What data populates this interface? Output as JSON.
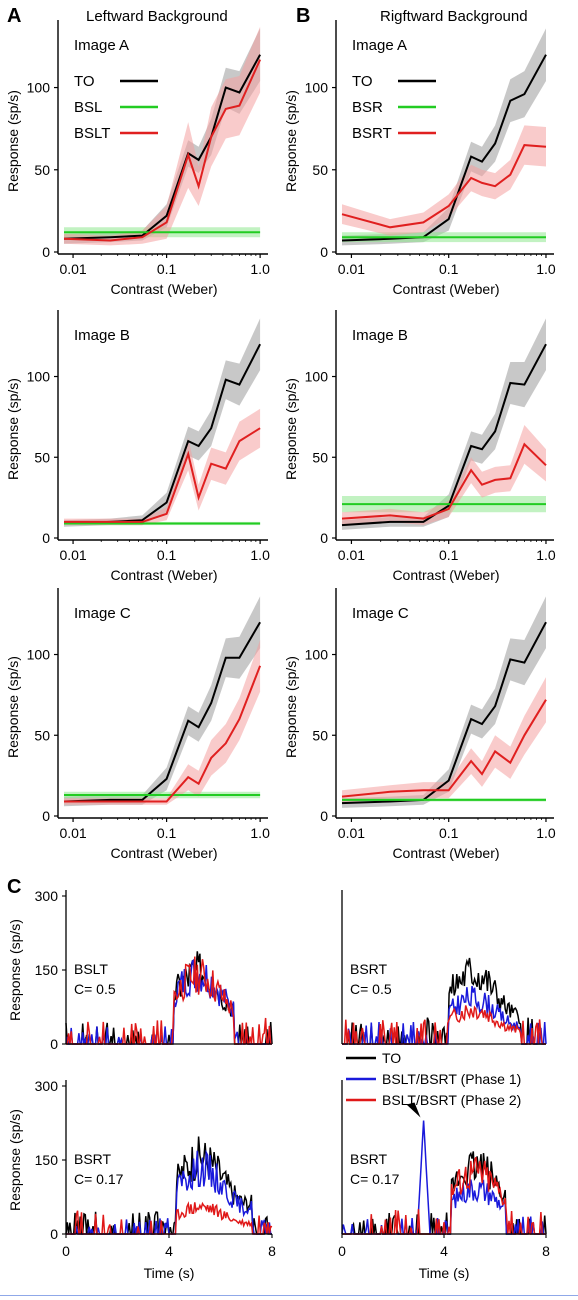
{
  "panel_letters": [
    "A",
    "B",
    "C"
  ],
  "column_titles": [
    "Leftward Background",
    "Rigftward Background"
  ],
  "colors": {
    "to": "#000000",
    "bg": "#22cc22",
    "bgt": "#e02020",
    "phase1": "#1a1adb",
    "phase2": "#e01818",
    "to_band": "#9a9a9a",
    "bg_band": "#8fe88f",
    "bgt_band": "#f4a0a0"
  },
  "chart_data": [
    {
      "type": "line",
      "panel": "A",
      "column": "left",
      "title": "Image A",
      "xlabel": "Contrast (Weber)",
      "ylabel": "Response (sp/s)",
      "xscale": "log",
      "xlim": [
        0.008,
        1.1
      ],
      "ylim": [
        0,
        135
      ],
      "xticks": [
        0.01,
        0.1,
        1.0
      ],
      "xticklabels": [
        "0.01",
        "0.1",
        "1.0"
      ],
      "yticks": [
        0,
        50,
        100
      ],
      "legend": "top-left",
      "x": [
        0.008,
        0.025,
        0.055,
        0.1,
        0.17,
        0.22,
        0.3,
        0.43,
        0.6,
        1.0
      ],
      "series": [
        {
          "name": "TO",
          "role": "to",
          "values": [
            8,
            9,
            10,
            22,
            60,
            56,
            70,
            100,
            97,
            120
          ],
          "band": [
            3,
            3,
            3,
            7,
            8,
            8,
            11,
            12,
            13,
            16
          ]
        },
        {
          "name": "BSL",
          "role": "bg",
          "values": [
            12,
            12,
            12,
            12,
            12,
            12,
            12,
            12,
            12,
            12
          ],
          "band": [
            3,
            3,
            3,
            3,
            3,
            3,
            3,
            3,
            3,
            3
          ]
        },
        {
          "name": "BSLT",
          "role": "bgt",
          "values": [
            8,
            7,
            9,
            18,
            59,
            40,
            70,
            87,
            89,
            117
          ],
          "band": [
            3,
            3,
            4,
            10,
            20,
            12,
            18,
            18,
            18,
            20
          ]
        }
      ]
    },
    {
      "type": "line",
      "panel": "B",
      "column": "right",
      "title": "Image A",
      "xlabel": "Contrast (Weber)",
      "ylabel": "Response (sp/s)",
      "xscale": "log",
      "xlim": [
        0.008,
        1.1
      ],
      "ylim": [
        0,
        135
      ],
      "xticks": [
        0.01,
        0.1,
        1.0
      ],
      "xticklabels": [
        "0.01",
        "0.1",
        "1.0"
      ],
      "yticks": [
        0,
        50,
        100
      ],
      "legend": "top-left",
      "x": [
        0.008,
        0.025,
        0.055,
        0.1,
        0.17,
        0.22,
        0.3,
        0.43,
        0.6,
        1.0
      ],
      "series": [
        {
          "name": "TO",
          "role": "to",
          "values": [
            7,
            8,
            9,
            20,
            58,
            55,
            66,
            92,
            96,
            120
          ],
          "band": [
            3,
            3,
            3,
            7,
            9,
            9,
            11,
            13,
            14,
            16
          ]
        },
        {
          "name": "BSR",
          "role": "bg",
          "values": [
            9,
            9,
            9,
            9,
            9,
            9,
            9,
            9,
            9,
            9
          ],
          "band": [
            3,
            3,
            3,
            3,
            3,
            3,
            3,
            3,
            3,
            3
          ]
        },
        {
          "name": "BSRT",
          "role": "bgt",
          "values": [
            23,
            15,
            18,
            28,
            45,
            42,
            40,
            47,
            65,
            64
          ],
          "band": [
            6,
            5,
            6,
            7,
            8,
            8,
            8,
            9,
            12,
            12
          ]
        }
      ]
    },
    {
      "type": "line",
      "panel": "A",
      "column": "left",
      "title": "Image B",
      "xlabel": "Contrast (Weber)",
      "ylabel": "Response (sp/s)",
      "xscale": "log",
      "xlim": [
        0.008,
        1.1
      ],
      "ylim": [
        0,
        135
      ],
      "xticks": [
        0.01,
        0.1,
        1.0
      ],
      "xticklabels": [
        "0.01",
        "0.1",
        "1.0"
      ],
      "yticks": [
        0,
        50,
        100
      ],
      "x": [
        0.008,
        0.025,
        0.055,
        0.1,
        0.17,
        0.22,
        0.3,
        0.43,
        0.6,
        1.0
      ],
      "series": [
        {
          "role": "to",
          "values": [
            9,
            10,
            11,
            22,
            60,
            57,
            68,
            98,
            95,
            120
          ],
          "band": [
            2,
            2,
            3,
            6,
            9,
            9,
            11,
            12,
            13,
            16
          ]
        },
        {
          "role": "bg",
          "values": [
            9,
            9,
            9,
            9,
            9,
            9,
            9,
            9,
            9,
            9
          ],
          "band": [
            1,
            1,
            1,
            1,
            1,
            1,
            1,
            1,
            1,
            1
          ]
        },
        {
          "role": "bgt",
          "values": [
            10,
            10,
            10,
            15,
            52,
            25,
            46,
            43,
            60,
            68
          ],
          "band": [
            2,
            2,
            2,
            4,
            10,
            8,
            10,
            10,
            12,
            12
          ]
        }
      ]
    },
    {
      "type": "line",
      "panel": "B",
      "column": "right",
      "title": "Image B",
      "xlabel": "Contrast (Weber)",
      "ylabel": "Response (sp/s)",
      "xscale": "log",
      "xlim": [
        0.008,
        1.1
      ],
      "ylim": [
        0,
        135
      ],
      "xticks": [
        0.01,
        0.1,
        1.0
      ],
      "xticklabels": [
        "0.01",
        "0.1",
        "1.0"
      ],
      "yticks": [
        0,
        50,
        100
      ],
      "x": [
        0.008,
        0.025,
        0.055,
        0.1,
        0.17,
        0.22,
        0.3,
        0.43,
        0.6,
        1.0
      ],
      "series": [
        {
          "role": "to",
          "values": [
            8,
            10,
            10,
            20,
            57,
            55,
            66,
            96,
            95,
            120
          ],
          "band": [
            3,
            3,
            3,
            7,
            9,
            9,
            11,
            13,
            14,
            16
          ]
        },
        {
          "role": "bg",
          "values": [
            21,
            21,
            21,
            21,
            21,
            21,
            21,
            21,
            21,
            21
          ],
          "band": [
            5,
            5,
            5,
            5,
            5,
            5,
            5,
            5,
            5,
            5
          ]
        },
        {
          "role": "bgt",
          "values": [
            12,
            14,
            12,
            18,
            42,
            33,
            36,
            37,
            58,
            45
          ],
          "band": [
            4,
            4,
            4,
            5,
            8,
            8,
            8,
            8,
            12,
            10
          ]
        }
      ]
    },
    {
      "type": "line",
      "panel": "A",
      "column": "left",
      "title": "Image C",
      "xlabel": "Contrast (Weber)",
      "ylabel": "Response (sp/s)",
      "xscale": "log",
      "xlim": [
        0.008,
        1.1
      ],
      "ylim": [
        0,
        135
      ],
      "xticks": [
        0.01,
        0.1,
        1.0
      ],
      "xticklabels": [
        "0.01",
        "0.1",
        "1.0"
      ],
      "yticks": [
        0,
        50,
        100
      ],
      "x": [
        0.008,
        0.025,
        0.055,
        0.1,
        0.17,
        0.22,
        0.3,
        0.43,
        0.6,
        1.0
      ],
      "series": [
        {
          "role": "to",
          "values": [
            9,
            10,
            10,
            23,
            59,
            55,
            70,
            98,
            98,
            120
          ],
          "band": [
            3,
            3,
            3,
            7,
            9,
            9,
            11,
            12,
            13,
            16
          ]
        },
        {
          "role": "bg",
          "values": [
            13,
            13,
            13,
            13,
            13,
            13,
            13,
            13,
            13,
            13
          ],
          "band": [
            2,
            2,
            2,
            2,
            2,
            2,
            2,
            2,
            2,
            2
          ]
        },
        {
          "role": "bgt",
          "values": [
            9,
            9,
            9,
            9,
            24,
            20,
            36,
            45,
            60,
            93
          ],
          "band": [
            2,
            2,
            2,
            2,
            8,
            8,
            11,
            12,
            13,
            16
          ]
        }
      ]
    },
    {
      "type": "line",
      "panel": "B",
      "column": "right",
      "title": "Image C",
      "xlabel": "Contrast (Weber)",
      "ylabel": "Response (sp/s)",
      "xscale": "log",
      "xlim": [
        0.008,
        1.1
      ],
      "ylim": [
        0,
        135
      ],
      "xticks": [
        0.01,
        0.1,
        1.0
      ],
      "xticklabels": [
        "0.01",
        "0.1",
        "1.0"
      ],
      "yticks": [
        0,
        50,
        100
      ],
      "x": [
        0.008,
        0.025,
        0.055,
        0.1,
        0.17,
        0.22,
        0.3,
        0.43,
        0.6,
        1.0
      ],
      "series": [
        {
          "role": "to",
          "values": [
            8,
            9,
            10,
            22,
            60,
            57,
            68,
            97,
            95,
            120
          ],
          "band": [
            3,
            3,
            3,
            7,
            9,
            9,
            11,
            13,
            14,
            16
          ]
        },
        {
          "role": "bg",
          "values": [
            10,
            10,
            10,
            10,
            10,
            10,
            10,
            10,
            10,
            10
          ],
          "band": [
            1,
            1,
            1,
            1,
            1,
            1,
            1,
            1,
            1,
            1
          ]
        },
        {
          "role": "bgt",
          "values": [
            12,
            15,
            16,
            16,
            34,
            26,
            40,
            33,
            50,
            72
          ],
          "band": [
            4,
            4,
            5,
            5,
            8,
            8,
            10,
            10,
            12,
            14
          ]
        }
      ]
    },
    {
      "type": "line",
      "panel": "C",
      "kind": "psth",
      "label": "BSLT\nC= 0.5",
      "xlabel": "",
      "ylabel": "Response (sp/s)",
      "xlim": [
        0,
        8
      ],
      "ylim": [
        0,
        300
      ],
      "yticks": [
        0,
        150,
        300
      ],
      "xticks": [],
      "onset": 4.2,
      "offset": 6.5,
      "series": [
        {
          "role": "to",
          "baseline": 10,
          "peak": 190,
          "seed": 3
        },
        {
          "role": "phase1",
          "baseline": 8,
          "peak": 185,
          "seed": 7
        },
        {
          "role": "phase2",
          "baseline": 12,
          "peak": 180,
          "seed": 11
        }
      ]
    },
    {
      "type": "line",
      "panel": "C",
      "kind": "psth",
      "label": "BSRT\nC= 0.5",
      "xlabel": "",
      "ylabel": "",
      "xlim": [
        0,
        8
      ],
      "ylim": [
        0,
        300
      ],
      "yticks": [],
      "xticks": [],
      "onset": 4.2,
      "offset": 7.0,
      "series": [
        {
          "role": "to",
          "baseline": 12,
          "peak": 185,
          "seed": 5
        },
        {
          "role": "phase1",
          "baseline": 10,
          "peak": 120,
          "seed": 9
        },
        {
          "role": "phase2",
          "baseline": 12,
          "peak": 90,
          "seed": 13
        }
      ]
    },
    {
      "type": "line",
      "panel": "C",
      "kind": "psth",
      "label": "BSRT\nC= 0.17",
      "xlabel": "Time (s)",
      "ylabel": "Response (sp/s)",
      "xlim": [
        0,
        8
      ],
      "ylim": [
        0,
        300
      ],
      "yticks": [
        0,
        150,
        300
      ],
      "xticks": [
        0,
        4,
        8
      ],
      "onset": 4.3,
      "offset": 7.2,
      "series": [
        {
          "role": "to",
          "baseline": 10,
          "peak": 200,
          "seed": 17
        },
        {
          "role": "phase1",
          "baseline": 8,
          "peak": 170,
          "seed": 19
        },
        {
          "role": "phase2",
          "baseline": 12,
          "peak": 70,
          "seed": 23
        }
      ]
    },
    {
      "type": "line",
      "panel": "C",
      "kind": "psth",
      "label": "BSRT\nC= 0.17",
      "xlabel": "Time (s)",
      "ylabel": "",
      "xlim": [
        0,
        8
      ],
      "ylim": [
        0,
        300
      ],
      "yticks": [],
      "xticks": [
        0,
        4,
        8
      ],
      "onset": 4.3,
      "offset": 6.4,
      "transient": {
        "role": "phase1",
        "t": 3.2,
        "value": 230
      },
      "arrow_at": 3.0,
      "series": [
        {
          "role": "to",
          "baseline": 10,
          "peak": 175,
          "seed": 29
        },
        {
          "role": "phase1",
          "baseline": 8,
          "peak": 120,
          "seed": 31
        },
        {
          "role": "phase2",
          "baseline": 12,
          "peak": 165,
          "seed": 37
        }
      ]
    }
  ],
  "psth_legend": [
    {
      "label": "TO",
      "role": "to"
    },
    {
      "label": "BSLT/BSRT (Phase 1)",
      "role": "phase1"
    },
    {
      "label": "BSLT/BSRT (Phase 2)",
      "role": "phase2"
    }
  ]
}
